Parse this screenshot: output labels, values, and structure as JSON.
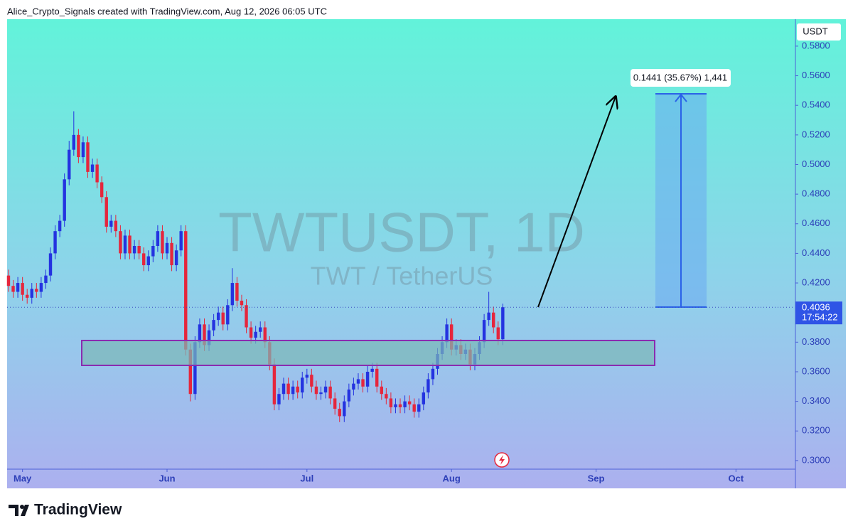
{
  "header": "Alice_Crypto_Signals created with TradingView.com, Aug 12, 2026 06:05 UTC",
  "footer": "TradingView",
  "chart_data": {
    "type": "candlestick",
    "title": "TWTUSDT, 1D",
    "subtitle": "TWT / TetherUS",
    "y_axis_label": "USDT",
    "countdown": "17:54:22",
    "measure_label": "0.1441 (35.67%) 1,441",
    "up_color": "#2433e0",
    "down_color": "#e5263c",
    "ylim": [
      0.2942,
      0.5982
    ],
    "xlim": [
      -0.3,
      168.6
    ],
    "yticks": [
      {
        "value": 0.3,
        "label": "0.3000"
      },
      {
        "value": 0.32,
        "label": "0.3200"
      },
      {
        "value": 0.34,
        "label": "0.3400"
      },
      {
        "value": 0.36,
        "label": "0.3600"
      },
      {
        "value": 0.38,
        "label": "0.3800"
      },
      {
        "value": 0.4,
        "label": "0.4000"
      },
      {
        "value": 0.42,
        "label": "0.4200"
      },
      {
        "value": 0.44,
        "label": "0.4400"
      },
      {
        "value": 0.46,
        "label": "0.4600"
      },
      {
        "value": 0.48,
        "label": "0.4800"
      },
      {
        "value": 0.5,
        "label": "0.5000"
      },
      {
        "value": 0.52,
        "label": "0.5200"
      },
      {
        "value": 0.54,
        "label": "0.5400"
      },
      {
        "value": 0.56,
        "label": "0.5600"
      },
      {
        "value": 0.58,
        "label": "0.5800"
      }
    ],
    "xticks": [
      {
        "value": 3,
        "label": "May"
      },
      {
        "value": 34,
        "label": "Jun"
      },
      {
        "value": 64,
        "label": "Jul"
      },
      {
        "value": 95,
        "label": "Aug"
      },
      {
        "value": 126,
        "label": "Sep"
      },
      {
        "value": 156,
        "label": "Oct"
      }
    ],
    "open": [
      0.425,
      0.418,
      0.414,
      0.42,
      0.412,
      0.41,
      0.416,
      0.414,
      0.42,
      0.425,
      0.44,
      0.455,
      0.462,
      0.49,
      0.51,
      0.52,
      0.505,
      0.515,
      0.495,
      0.5,
      0.488,
      0.478,
      0.458,
      0.462,
      0.455,
      0.44,
      0.452,
      0.44,
      0.445,
      0.44,
      0.432,
      0.438,
      0.445,
      0.455,
      0.44,
      0.447,
      0.432,
      0.442,
      0.455,
      0.375,
      0.345,
      0.38,
      0.392,
      0.378,
      0.388,
      0.395,
      0.4,
      0.392,
      0.405,
      0.42,
      0.408,
      0.405,
      0.39,
      0.383,
      0.387,
      0.39,
      0.38,
      0.365,
      0.338,
      0.345,
      0.352,
      0.345,
      0.35,
      0.346,
      0.356,
      0.358,
      0.35,
      0.345,
      0.346,
      0.35,
      0.342,
      0.335,
      0.33,
      0.34,
      0.348,
      0.352,
      0.355,
      0.35,
      0.36,
      0.362,
      0.35,
      0.345,
      0.342,
      0.336,
      0.338,
      0.336,
      0.34,
      0.338,
      0.333,
      0.338,
      0.346,
      0.355,
      0.362,
      0.372,
      0.38,
      0.392,
      0.375,
      0.378,
      0.372,
      0.375,
      0.365,
      0.372,
      0.38,
      0.395,
      0.4,
      0.39,
      0.382
    ],
    "high": [
      0.429,
      0.422,
      0.424,
      0.424,
      0.416,
      0.42,
      0.42,
      0.424,
      0.429,
      0.444,
      0.459,
      0.466,
      0.494,
      0.516,
      0.536,
      0.524,
      0.519,
      0.519,
      0.504,
      0.504,
      0.492,
      0.482,
      0.466,
      0.466,
      0.459,
      0.456,
      0.456,
      0.449,
      0.449,
      0.444,
      0.442,
      0.449,
      0.459,
      0.459,
      0.451,
      0.451,
      0.446,
      0.459,
      0.459,
      0.379,
      0.384,
      0.396,
      0.396,
      0.392,
      0.399,
      0.404,
      0.404,
      0.409,
      0.43,
      0.424,
      0.412,
      0.409,
      0.394,
      0.391,
      0.394,
      0.394,
      0.384,
      0.369,
      0.349,
      0.356,
      0.356,
      0.354,
      0.354,
      0.36,
      0.362,
      0.362,
      0.354,
      0.35,
      0.354,
      0.354,
      0.346,
      0.339,
      0.344,
      0.352,
      0.356,
      0.359,
      0.359,
      0.364,
      0.366,
      0.366,
      0.354,
      0.349,
      0.346,
      0.342,
      0.342,
      0.344,
      0.344,
      0.342,
      0.342,
      0.35,
      0.359,
      0.366,
      0.376,
      0.384,
      0.396,
      0.396,
      0.382,
      0.382,
      0.379,
      0.379,
      0.376,
      0.384,
      0.399,
      0.414,
      0.404,
      0.394,
      0.406
    ],
    "low": [
      0.414,
      0.41,
      0.41,
      0.408,
      0.406,
      0.406,
      0.41,
      0.41,
      0.416,
      0.421,
      0.436,
      0.451,
      0.458,
      0.486,
      0.506,
      0.501,
      0.501,
      0.491,
      0.491,
      0.484,
      0.474,
      0.454,
      0.454,
      0.451,
      0.436,
      0.436,
      0.436,
      0.436,
      0.436,
      0.428,
      0.428,
      0.434,
      0.441,
      0.436,
      0.436,
      0.428,
      0.428,
      0.438,
      0.371,
      0.34,
      0.341,
      0.376,
      0.374,
      0.374,
      0.384,
      0.391,
      0.388,
      0.388,
      0.401,
      0.404,
      0.401,
      0.386,
      0.379,
      0.379,
      0.383,
      0.376,
      0.361,
      0.334,
      0.334,
      0.341,
      0.341,
      0.341,
      0.342,
      0.342,
      0.352,
      0.346,
      0.341,
      0.341,
      0.342,
      0.338,
      0.331,
      0.326,
      0.326,
      0.336,
      0.344,
      0.348,
      0.346,
      0.346,
      0.356,
      0.346,
      0.341,
      0.338,
      0.332,
      0.332,
      0.332,
      0.332,
      0.334,
      0.329,
      0.329,
      0.334,
      0.342,
      0.351,
      0.358,
      0.368,
      0.376,
      0.371,
      0.371,
      0.368,
      0.368,
      0.361,
      0.361,
      0.368,
      0.376,
      0.391,
      0.386,
      0.378,
      0.378
    ],
    "close": [
      0.418,
      0.414,
      0.42,
      0.412,
      0.41,
      0.416,
      0.414,
      0.42,
      0.425,
      0.44,
      0.455,
      0.462,
      0.49,
      0.51,
      0.52,
      0.505,
      0.515,
      0.495,
      0.5,
      0.488,
      0.478,
      0.458,
      0.462,
      0.455,
      0.44,
      0.452,
      0.44,
      0.445,
      0.44,
      0.432,
      0.438,
      0.445,
      0.455,
      0.44,
      0.447,
      0.432,
      0.442,
      0.455,
      0.375,
      0.345,
      0.38,
      0.392,
      0.378,
      0.388,
      0.395,
      0.4,
      0.392,
      0.405,
      0.42,
      0.408,
      0.405,
      0.39,
      0.383,
      0.387,
      0.39,
      0.38,
      0.365,
      0.338,
      0.345,
      0.352,
      0.345,
      0.35,
      0.346,
      0.356,
      0.358,
      0.35,
      0.345,
      0.346,
      0.35,
      0.342,
      0.335,
      0.33,
      0.34,
      0.348,
      0.352,
      0.355,
      0.35,
      0.36,
      0.362,
      0.35,
      0.345,
      0.342,
      0.336,
      0.338,
      0.336,
      0.34,
      0.338,
      0.333,
      0.338,
      0.346,
      0.355,
      0.362,
      0.372,
      0.38,
      0.392,
      0.375,
      0.378,
      0.372,
      0.375,
      0.365,
      0.372,
      0.38,
      0.395,
      0.4,
      0.39,
      0.382,
      0.4036
    ]
  }
}
